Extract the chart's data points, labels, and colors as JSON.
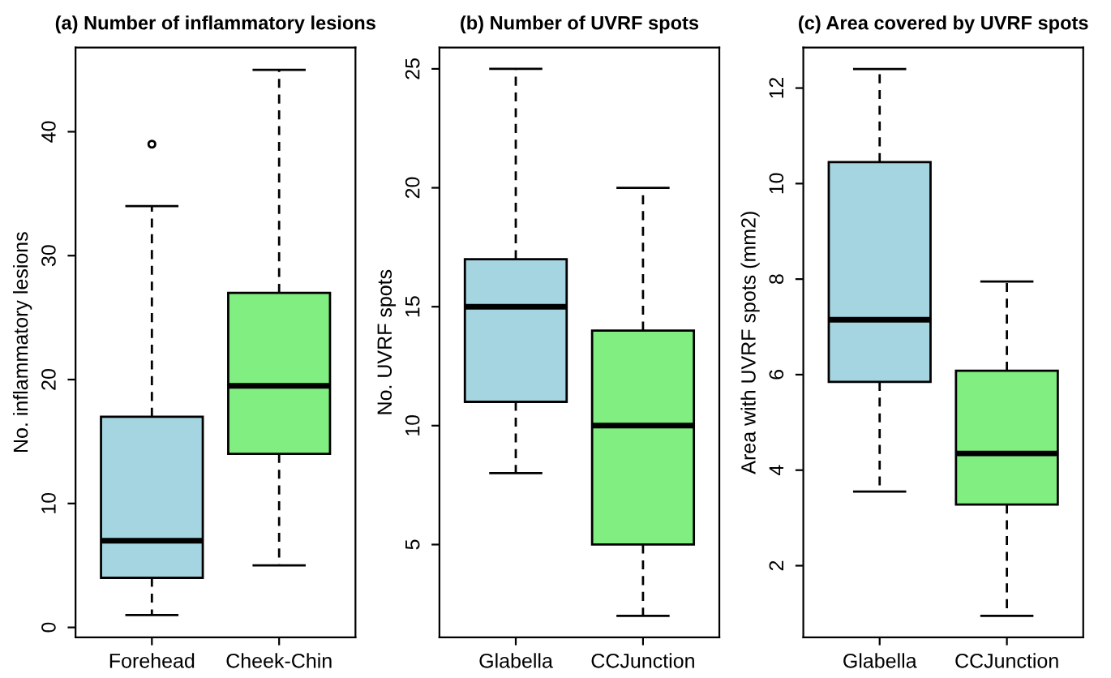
{
  "chart_data": [
    {
      "type": "box",
      "title": "(a) Number of inflammatory lesions",
      "ylabel": "No. inflammatory lesions",
      "categories": [
        "Forehead",
        "Cheek-Chin"
      ],
      "colors": [
        "#a6d5e2",
        "#80ee80"
      ],
      "boxes": [
        {
          "low": 1,
          "q1": 4,
          "median": 7,
          "q3": 17,
          "high": 34,
          "outliers": [
            39
          ]
        },
        {
          "low": 5,
          "q1": 14,
          "median": 19.5,
          "q3": 27,
          "high": 45
        }
      ],
      "ylim": [
        -0.8,
        46.8
      ],
      "yticks": [
        0,
        10,
        20,
        30,
        40
      ],
      "grid": false
    },
    {
      "type": "box",
      "title": "(b) Number of UVRF spots",
      "ylabel": "No. UVRF spots",
      "categories": [
        "Glabella",
        "CCJunction"
      ],
      "colors": [
        "#a6d5e2",
        "#80ee80"
      ],
      "boxes": [
        {
          "low": 8,
          "q1": 11,
          "median": 15,
          "q3": 17,
          "high": 25
        },
        {
          "low": 2,
          "q1": 5,
          "median": 10,
          "q3": 14,
          "high": 20
        }
      ],
      "ylim": [
        1.1,
        25.9
      ],
      "yticks": [
        5,
        10,
        15,
        20,
        25
      ],
      "grid": false
    },
    {
      "type": "box",
      "title": "(c) Area covered by UVRF spots",
      "ylabel": "Area with UVRF spots (mm2)",
      "categories": [
        "Glabella",
        "CCJunction"
      ],
      "colors": [
        "#a6d5e2",
        "#80ee80"
      ],
      "boxes": [
        {
          "low": 3.55,
          "q1": 5.85,
          "median": 7.15,
          "q3": 10.45,
          "high": 12.4
        },
        {
          "low": 0.95,
          "q1": 3.28,
          "median": 4.35,
          "q3": 6.08,
          "high": 7.95
        }
      ],
      "ylim": [
        0.5,
        12.85
      ],
      "yticks": [
        2,
        4,
        6,
        8,
        10,
        12
      ],
      "grid": false
    }
  ]
}
